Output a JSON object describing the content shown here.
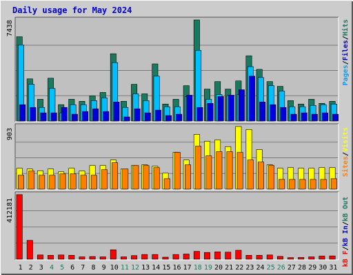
{
  "chart_data": {
    "type": "bar",
    "title": "Daily usage for May 2024",
    "categories": [
      "1",
      "2",
      "3",
      "4",
      "5",
      "6",
      "7",
      "8",
      "9",
      "10",
      "11",
      "12",
      "13",
      "14",
      "15",
      "16",
      "17",
      "18",
      "19",
      "20",
      "21",
      "22",
      "23",
      "24",
      "25",
      "26",
      "27",
      "28",
      "29",
      "30",
      "31"
    ],
    "weekend_days": [
      "4",
      "5",
      "11",
      "12",
      "18",
      "19",
      "25",
      "26"
    ],
    "panels": [
      {
        "name": "hits-files-pages",
        "ymax": 7438,
        "ymax_label": "7438",
        "legend": [
          "Pages",
          "/",
          "Files",
          "/",
          "Hits"
        ],
        "series": [
          {
            "name": "Hits",
            "color": "#1a7a60",
            "values": [
              6200,
              3100,
              1600,
              3150,
              1200,
              1600,
              1450,
              1850,
              2100,
              4950,
              1450,
              2700,
              2000,
              4200,
              1250,
              1600,
              2600,
              7438,
              2350,
              2900,
              2350,
              2950,
              4800,
              3800,
              2900,
              2550,
              1500,
              1250,
              1600,
              1300,
              1450
            ]
          },
          {
            "name": "Files",
            "color": "#00bfff",
            "values": [
              5600,
              2700,
              1000,
              2400,
              600,
              1200,
              1200,
              1500,
              1700,
              4300,
              1000,
              2000,
              1500,
              3300,
              1050,
              1050,
              1800,
              5200,
              1600,
              1950,
              1850,
              1950,
              4000,
              3200,
              2600,
              2200,
              1050,
              1050,
              1150,
              1200,
              1250
            ]
          },
          {
            "name": "Pages",
            "color": "#0000dd",
            "values": [
              1200,
              1000,
              600,
              600,
              1000,
              500,
              700,
              900,
              700,
              1400,
              300,
              900,
              600,
              800,
              400,
              500,
              1900,
              1000,
              1300,
              1800,
              1900,
              2300,
              3300,
              1400,
              1200,
              1000,
              500,
              600,
              500,
              600,
              500
            ]
          }
        ]
      },
      {
        "name": "visits-sites",
        "ymax": 903,
        "ymax_label": "903",
        "legend": [
          "Sites",
          "/",
          "Visits"
        ],
        "series": [
          {
            "name": "Visits",
            "color": "#ffff00",
            "values": [
              300,
              290,
              265,
              290,
              250,
              300,
              260,
              340,
              340,
              420,
              290,
              340,
              350,
              330,
              230,
              530,
              420,
              790,
              690,
              710,
              613,
              903,
              860,
              570,
              350,
              300,
              310,
              300,
              300,
              310,
              310
            ]
          },
          {
            "name": "Sites",
            "color": "#ff8000",
            "values": [
              200,
              260,
              200,
              200,
              220,
              220,
              200,
              200,
              280,
              380,
              290,
              340,
              340,
              310,
              150,
              530,
              350,
              620,
              480,
              540,
              540,
              530,
              420,
              390,
              340,
              140,
              140,
              140,
              140,
              140,
              150
            ]
          }
        ]
      },
      {
        "name": "kb-in-out",
        "ymax": 412181,
        "ymax_label": "412181",
        "legend": [
          "kB F",
          "/",
          "kB In",
          "/",
          "kB Out"
        ],
        "series": [
          {
            "name": "kB F",
            "color": "#ff0000",
            "values": [
              412181,
              120000,
              27000,
              25000,
              27000,
              25000,
              15000,
              17000,
              15000,
              60000,
              15000,
              23000,
              30000,
              30000,
              13000,
              30000,
              33000,
              50000,
              43000,
              47000,
              45000,
              57000,
              25000,
              25000,
              27000,
              18000,
              10000,
              11000,
              15000,
              20000,
              21000
            ]
          }
        ]
      }
    ]
  }
}
